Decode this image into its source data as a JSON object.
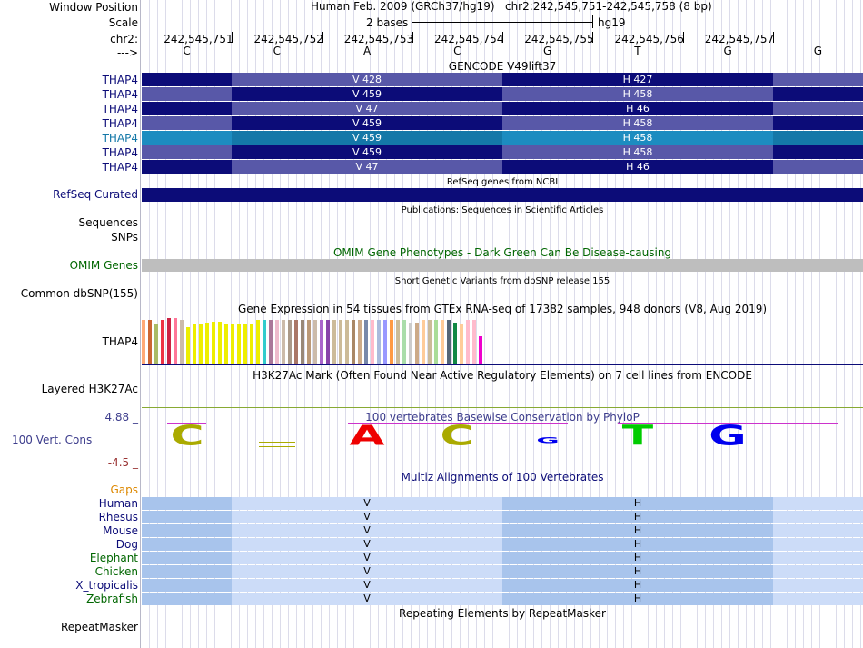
{
  "header": {
    "window_position_label": "Window Position",
    "assembly": "Human Feb. 2009 (GRCh37/hg19)",
    "position": "chr2:242,545,751-242,545,758 (8 bp)",
    "scale_label": "Scale",
    "scale_text": "2 bases",
    "scale_db": "hg19",
    "chrom_label": "chr2:",
    "strand_label": "--->",
    "ticks": [
      "242,545,751",
      "242,545,752",
      "242,545,753",
      "242,545,754",
      "242,545,755",
      "242,545,756",
      "242,545,757"
    ],
    "bases": [
      "C",
      "C",
      "A",
      "C",
      "G",
      "T",
      "G",
      "G"
    ]
  },
  "gencode": {
    "title": "GENCODE V49lift37",
    "rows": [
      {
        "name": "THAP4",
        "left": "V 428",
        "right": "H 427"
      },
      {
        "name": "THAP4",
        "left": "V 459",
        "right": "H 458"
      },
      {
        "name": "THAP4",
        "left": "V 47",
        "right": "H 46"
      },
      {
        "name": "THAP4",
        "left": "V 459",
        "right": "H 458"
      },
      {
        "name": "THAP4",
        "left": "V 459",
        "right": "H 458"
      },
      {
        "name": "THAP4",
        "left": "V 459",
        "right": "H 458"
      },
      {
        "name": "THAP4",
        "left": "V 47",
        "right": "H 46"
      }
    ]
  },
  "refseq": {
    "title": "RefSeq genes from NCBI",
    "label": "RefSeq Curated"
  },
  "publications": {
    "title": "Publications: Sequences in Scientific Articles",
    "label": "Sequences"
  },
  "snps": {
    "label": "SNPs"
  },
  "omim": {
    "title": "OMIM Gene Phenotypes - Dark Green Can Be Disease-causing",
    "label": "OMIM Genes"
  },
  "dbsnp": {
    "title": "Short Genetic Variants from dbSNP release 155",
    "label": "Common dbSNP(155)"
  },
  "gtex": {
    "title": "Gene Expression in 54 tissues from GTEx RNA-seq of 17382 samples, 948 donors (V8, Aug 2019)",
    "label": "THAP4",
    "values": [
      0.95,
      0.95,
      0.85,
      0.95,
      1.0,
      1.0,
      0.95,
      0.8,
      0.85,
      0.88,
      0.9,
      0.92,
      0.92,
      0.88,
      0.88,
      0.85,
      0.85,
      0.85,
      0.95,
      0.95,
      0.95,
      0.95,
      0.95,
      0.95,
      0.95,
      0.95,
      0.95,
      0.95,
      0.95,
      0.95,
      0.95,
      0.95,
      0.95,
      0.95,
      0.95,
      0.95,
      0.95,
      0.95,
      0.95,
      0.95,
      0.95,
      0.95,
      0.9,
      0.9,
      0.95,
      0.95,
      0.95,
      0.95,
      0.95,
      0.9,
      0.85,
      0.95,
      0.95,
      0.6
    ],
    "colors": [
      "#ffaa77",
      "#cc6633",
      "#aabb66",
      "#ee3344",
      "#cc2244",
      "#ff7799",
      "#ccbbaa",
      "#eeee00",
      "#eeee00",
      "#eeee00",
      "#eeee00",
      "#eeee00",
      "#eeee00",
      "#eeee00",
      "#eeee00",
      "#eeee00",
      "#eeee00",
      "#eeee00",
      "#eeee00",
      "#33cccc",
      "#aa7799",
      "#eebbcc",
      "#ccbbaa",
      "#aa9988",
      "#aa7766",
      "#998877",
      "#bb9977",
      "#ccbbaa",
      "#aa66cc",
      "#8844aa",
      "#ccbb99",
      "#ccbb99",
      "#ccbb99",
      "#aa8866",
      "#ccaa88",
      "#7788aa",
      "#ffbbcc",
      "#aabbdd",
      "#9999ff",
      "#ff9944",
      "#ccbb99",
      "#aaddaa",
      "#cccccc",
      "#ccaa88",
      "#ffcc99",
      "#ccbb99",
      "#aadd99",
      "#ffcc99",
      "#556677",
      "#118844",
      "#ffcc99",
      "#ffbbcc",
      "#ffbbcc",
      "#ee00cc"
    ]
  },
  "h3k27ac": {
    "title": "H3K27Ac Mark (Often Found Near Active Regulatory Elements) on 7 cell lines from ENCODE",
    "label": "Layered H3K27Ac"
  },
  "conservation": {
    "title": "100 vertebrates Basewise Conservation by PhyloP",
    "label": "100 Vert. Cons",
    "max": "4.88 _",
    "min": "-4.5 _",
    "letters": [
      "C",
      "",
      "A",
      "C",
      "G",
      "T",
      "G",
      ""
    ],
    "colors": {
      "C": "#aaaa00",
      "A": "#ee0000",
      "G": "#0000ee",
      "T": "#00cc00"
    },
    "scores": [
      0.55,
      0.05,
      0.6,
      0.55,
      0.15,
      0.55,
      0.6,
      0
    ]
  },
  "multiz": {
    "title": "Multiz Alignments of 100 Vertebrates",
    "gaps_label": "Gaps",
    "species": [
      "Human",
      "Rhesus",
      "Mouse",
      "Dog",
      "Elephant",
      "Chicken",
      "X_tropicalis",
      "Zebrafish"
    ],
    "left": "V",
    "right": "H"
  },
  "repeatmasker": {
    "title": "Repeating Elements by RepeatMasker",
    "label": "RepeatMasker"
  },
  "theme": {
    "navy": "#0c0c78",
    "mid_blue": "#5858a8",
    "teal": "#1478a8",
    "omim_label": "#006600",
    "omim_bar": "#bebebe",
    "cons_label": "#3c3c8c",
    "multiz_light": "#ccdcf8",
    "multiz_dark": "#a8c4ec",
    "gaps": "#dd8800"
  }
}
